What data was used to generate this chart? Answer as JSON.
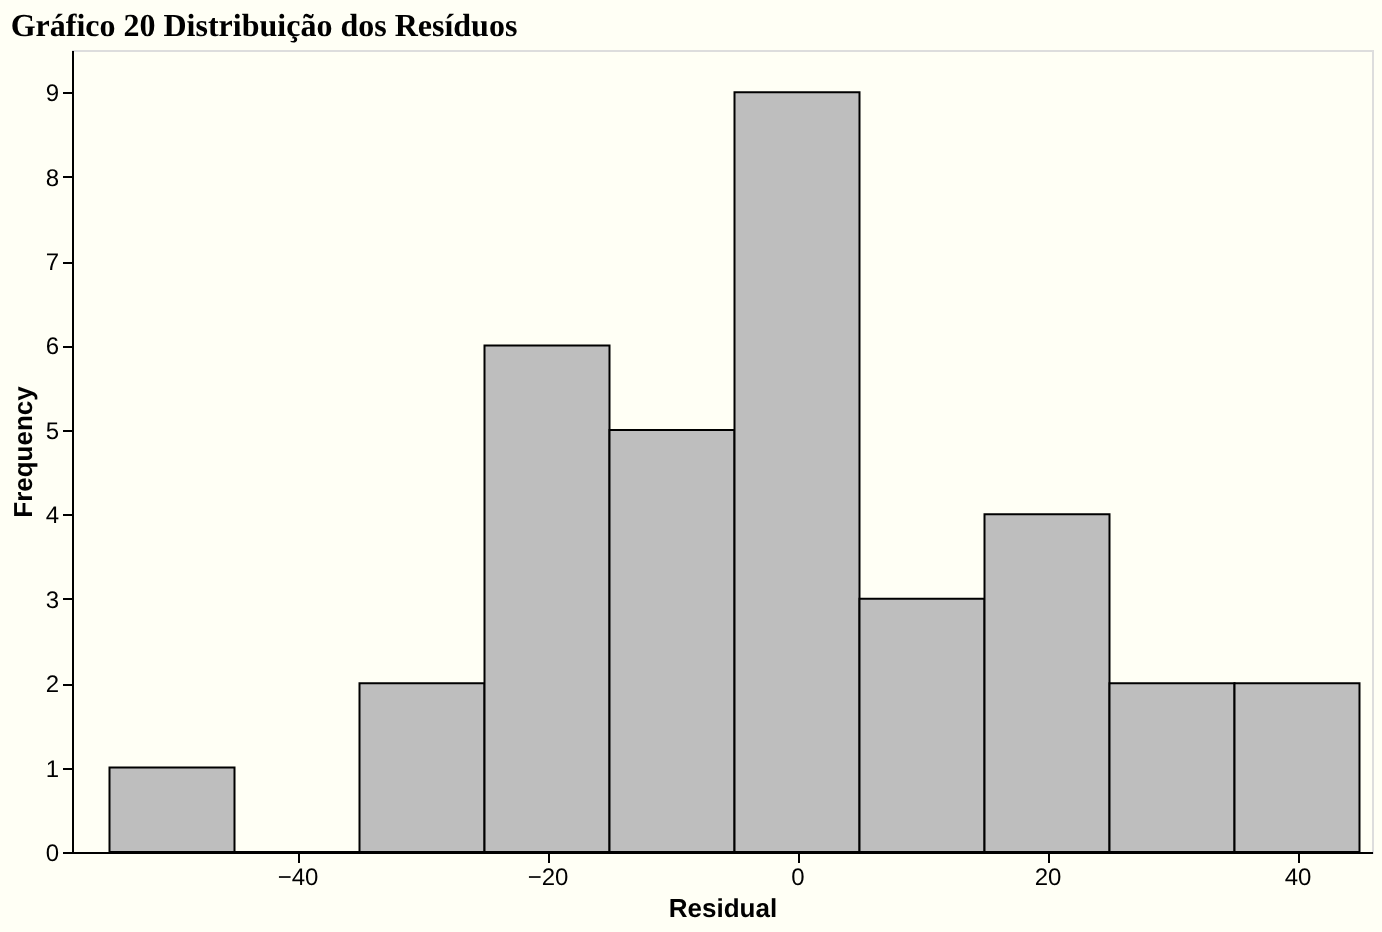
{
  "chart_data": {
    "type": "histogram",
    "title": "Gráfico 20 Distribuição dos Resíduos",
    "xlabel": "Residual",
    "ylabel": "Frequency",
    "bins": [
      -55,
      -45,
      -35,
      -25,
      -15,
      -5,
      5,
      15,
      25,
      35,
      45
    ],
    "values": [
      1,
      0,
      2,
      6,
      5,
      9,
      3,
      4,
      2,
      2
    ],
    "color": "#bebebe",
    "xlim": [
      -58,
      46
    ],
    "xticks": [
      -40,
      -20,
      0,
      20,
      40
    ],
    "ylim": [
      0,
      9.5
    ],
    "yticks": [
      0,
      1,
      2,
      3,
      4,
      5,
      6,
      7,
      8,
      9
    ],
    "grid": false
  }
}
